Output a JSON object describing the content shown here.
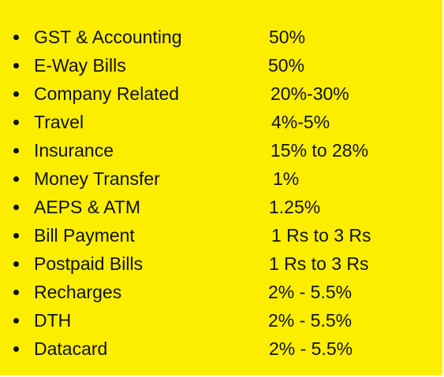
{
  "items": [
    {
      "name": "GST & Accounting",
      "rate": "50%"
    },
    {
      "name": "E-Way Bills",
      "rate": "50%"
    },
    {
      "name": "Company Related",
      "rate": "20%-30%"
    },
    {
      "name": "Travel",
      "rate": "4%-5%"
    },
    {
      "name": "Insurance",
      "rate": "15% to 28%"
    },
    {
      "name": "Money Transfer",
      "rate": "1%"
    },
    {
      "name": "AEPS & ATM",
      "rate": "1.25%"
    },
    {
      "name": "Bill Payment",
      "rate": "1 Rs to 3 Rs"
    },
    {
      "name": "Postpaid Bills",
      "rate": "1 Rs to 3 Rs"
    },
    {
      "name": "Recharges",
      "rate": "2% - 5.5%"
    },
    {
      "name": "DTH",
      "rate": "2% - 5.5%"
    },
    {
      "name": "Datacard",
      "rate": "2% - 5.5%"
    }
  ],
  "colors": {
    "background": "#fdee00",
    "text": "#111111"
  }
}
